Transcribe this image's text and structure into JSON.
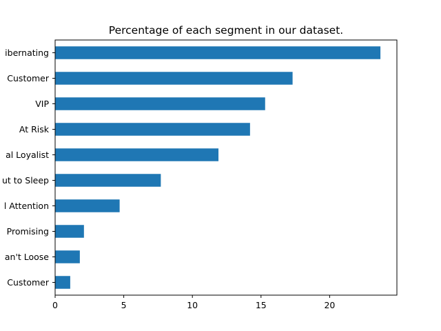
{
  "chart_data": {
    "type": "bar",
    "orientation": "horizontal",
    "title": "Percentage of each segment in our dataset.",
    "xlabel": "",
    "ylabel": "",
    "categories": [
      "Hibernating",
      "Potential Customer",
      "VIP",
      "At Risk",
      "Potential Loyalist",
      "About to Sleep",
      "Need Attention",
      "Promising",
      "Can't Loose",
      "New Customer"
    ],
    "category_labels_visible": [
      "ibernating",
      "Customer",
      "VIP",
      "At Risk",
      "al Loyalist",
      "ut to Sleep",
      "l Attention",
      "Promising",
      "an't Loose",
      "Customer"
    ],
    "values": [
      23.7,
      17.3,
      15.3,
      14.2,
      11.9,
      7.7,
      4.7,
      2.1,
      1.8,
      1.1
    ],
    "xlim": [
      0,
      24.9
    ],
    "xticks": [
      0,
      5,
      10,
      15,
      20
    ],
    "grid": false,
    "legend": "none",
    "bar_color": "#1f77b4"
  }
}
